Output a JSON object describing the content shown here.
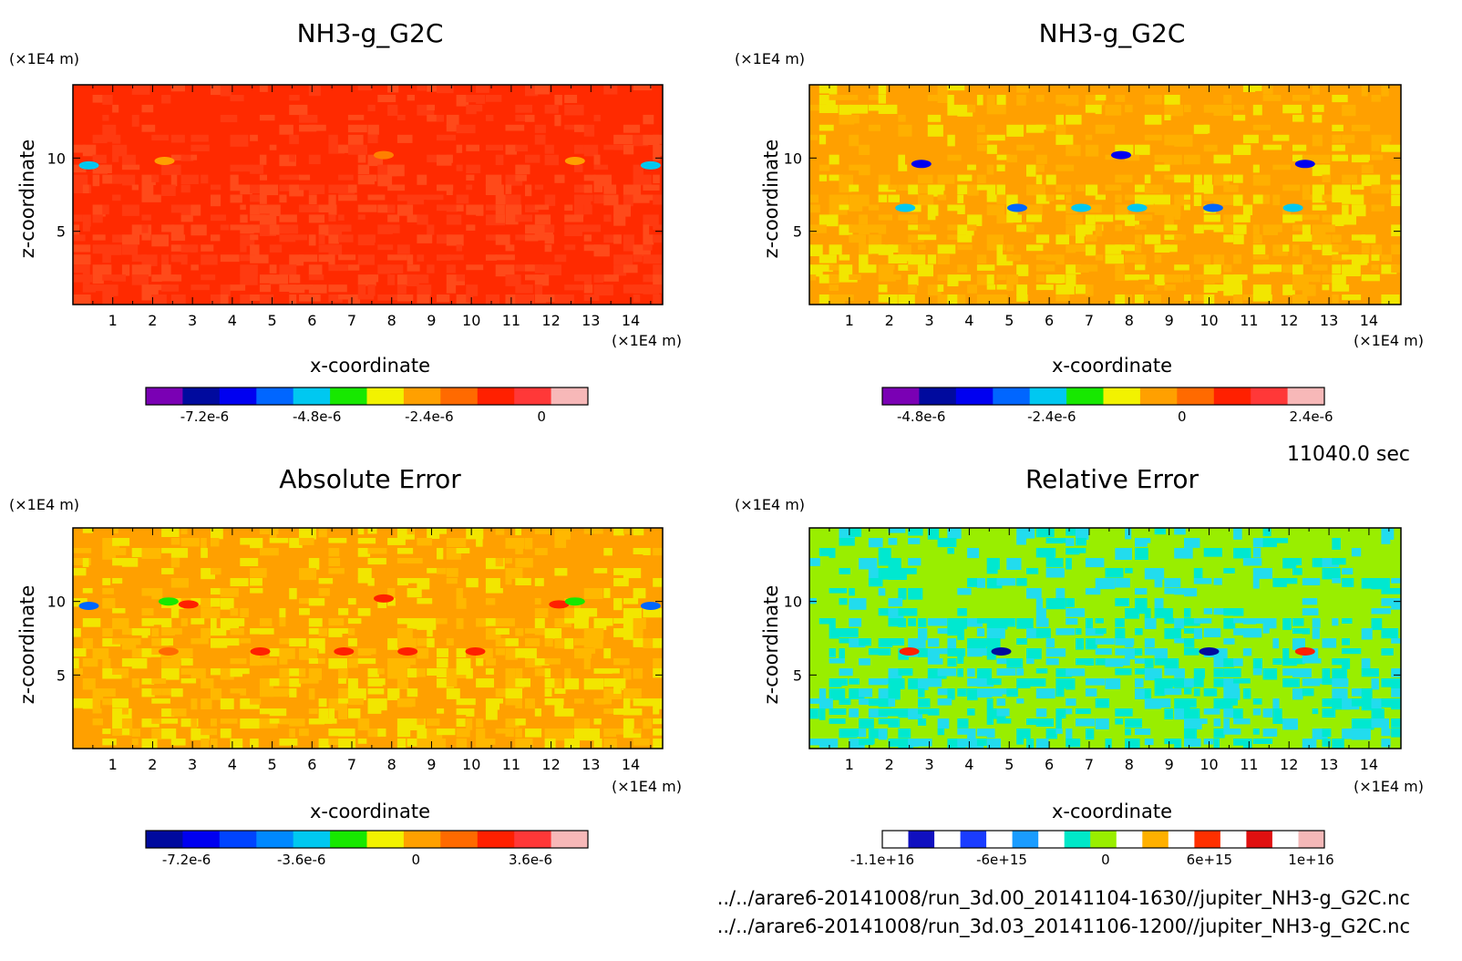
{
  "time_label": "11040.0 sec",
  "files": [
    "../../arare6-20141008/run_3d.00_20141104-1630//jupiter_NH3-g_G2C.nc",
    "../../arare6-20141008/run_3d.03_20141106-1200//jupiter_NH3-g_G2C.nc"
  ],
  "chart_data": [
    {
      "type": "heatmap",
      "title": "NH3-g_G2C",
      "xlabel": "x-coordinate",
      "ylabel": "z-coordinate",
      "x_unit": "(×1E4 m)",
      "y_unit": "(×1E4 m)",
      "xlim": [
        0,
        14.8
      ],
      "ylim": [
        0,
        15
      ],
      "x_ticks": [
        "1",
        "2",
        "3",
        "4",
        "5",
        "6",
        "7",
        "8",
        "9",
        "10",
        "11",
        "12",
        "13",
        "14"
      ],
      "y_ticks": [
        "5",
        "10"
      ],
      "base_color": "#ff2a00",
      "colorbar": {
        "colors": [
          "#7a00b4",
          "#000a9e",
          "#0000f0",
          "#0066ff",
          "#00c8f0",
          "#17e800",
          "#f2f200",
          "#ffa000",
          "#ff6a00",
          "#ff2000",
          "#ff3838",
          "#f7b8b8"
        ],
        "labels": [
          "-7.2e-6",
          "-4.8e-6",
          "-2.4e-6",
          "0"
        ]
      }
    },
    {
      "type": "heatmap",
      "title": "NH3-g_G2C",
      "xlabel": "x-coordinate",
      "ylabel": "z-coordinate",
      "x_unit": "(×1E4 m)",
      "y_unit": "(×1E4 m)",
      "xlim": [
        0,
        14.8
      ],
      "ylim": [
        0,
        15
      ],
      "x_ticks": [
        "1",
        "2",
        "3",
        "4",
        "5",
        "6",
        "7",
        "8",
        "9",
        "10",
        "11",
        "12",
        "13",
        "14"
      ],
      "y_ticks": [
        "5",
        "10"
      ],
      "base_color": "#ffa000",
      "colorbar": {
        "colors": [
          "#7a00b4",
          "#000a9e",
          "#0000f0",
          "#0066ff",
          "#00c8f0",
          "#17e800",
          "#f2f200",
          "#ffa000",
          "#ff6a00",
          "#ff2000",
          "#ff3838",
          "#f7b8b8"
        ],
        "labels": [
          "-4.8e-6",
          "-2.4e-6",
          "0",
          "2.4e-6"
        ]
      }
    },
    {
      "type": "heatmap",
      "title": "Absolute Error",
      "xlabel": "x-coordinate",
      "ylabel": "z-coordinate",
      "x_unit": "(×1E4 m)",
      "y_unit": "(×1E4 m)",
      "xlim": [
        0,
        14.8
      ],
      "ylim": [
        0,
        15
      ],
      "x_ticks": [
        "1",
        "2",
        "3",
        "4",
        "5",
        "6",
        "7",
        "8",
        "9",
        "10",
        "11",
        "12",
        "13",
        "14"
      ],
      "y_ticks": [
        "5",
        "10"
      ],
      "base_color": "#ffa000",
      "colorbar": {
        "colors": [
          "#000a9e",
          "#0000f0",
          "#0044ff",
          "#0088ff",
          "#00c8f0",
          "#17e800",
          "#f2f200",
          "#ffa000",
          "#ff6a00",
          "#ff2000",
          "#ff3838",
          "#f7b8b8"
        ],
        "labels": [
          "-7.2e-6",
          "-3.6e-6",
          "0",
          "3.6e-6"
        ]
      }
    },
    {
      "type": "heatmap",
      "title": "Relative Error",
      "xlabel": "x-coordinate",
      "ylabel": "z-coordinate",
      "x_unit": "(×1E4 m)",
      "y_unit": "(×1E4 m)",
      "xlim": [
        0,
        14.8
      ],
      "ylim": [
        0,
        15
      ],
      "x_ticks": [
        "1",
        "2",
        "3",
        "4",
        "5",
        "6",
        "7",
        "8",
        "9",
        "10",
        "11",
        "12",
        "13",
        "14"
      ],
      "y_ticks": [
        "5",
        "10"
      ],
      "base_color": "#99ee00",
      "colorbar": {
        "colors": [
          "#ffffff",
          "#1010c0",
          "#ffffff",
          "#1a3cff",
          "#ffffff",
          "#1a9cff",
          "#ffffff",
          "#00e8c8",
          "#99ee00",
          "#ffffff",
          "#ffb000",
          "#ffffff",
          "#ff3000",
          "#ffffff",
          "#e01010",
          "#ffffff",
          "#f4b8b8"
        ],
        "labels": [
          "-1.1e+16",
          "-6e+15",
          "0",
          "6e+15",
          "1e+16"
        ]
      }
    }
  ]
}
